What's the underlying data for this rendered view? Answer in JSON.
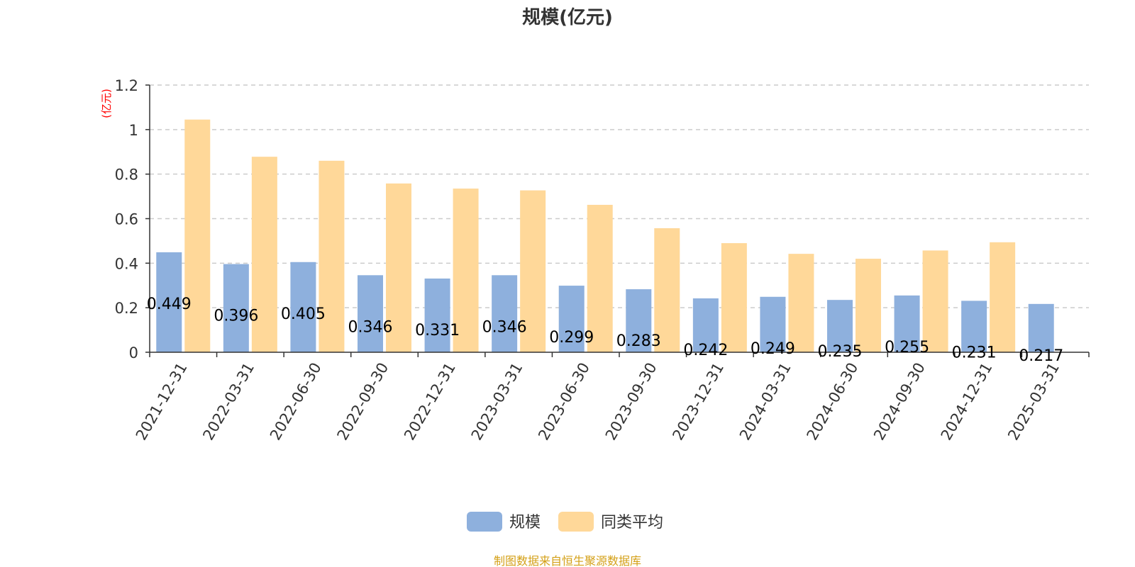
{
  "chart_data": {
    "type": "bar",
    "title": "规模(亿元)",
    "ylabel": "(亿元)",
    "ylim": [
      0,
      1.2
    ],
    "yticks": [
      "0",
      "0.2",
      "0.4",
      "0.6",
      "0.8",
      "1",
      "1.2"
    ],
    "ytick_values": [
      0,
      0.2,
      0.4,
      0.6,
      0.8,
      1,
      1.2
    ],
    "grid": true,
    "legend_position": "bottom",
    "categories": [
      "2021-12-31",
      "2022-03-31",
      "2022-06-30",
      "2022-09-30",
      "2022-12-31",
      "2023-03-31",
      "2023-06-30",
      "2023-09-30",
      "2023-12-31",
      "2024-03-31",
      "2024-06-30",
      "2024-09-30",
      "2024-12-31",
      "2025-03-31"
    ],
    "series": [
      {
        "name": "规模",
        "color": "#8eb0dd",
        "values": [
          0.449,
          0.396,
          0.405,
          0.346,
          0.331,
          0.346,
          0.299,
          0.283,
          0.242,
          0.249,
          0.235,
          0.255,
          0.231,
          0.217
        ],
        "data_labels": [
          "0.449",
          "0.396",
          "0.405",
          "0.346",
          "0.331",
          "0.346",
          "0.299",
          "0.283",
          "0.242",
          "0.249",
          "0.235",
          "0.255",
          "0.231",
          "0.217"
        ]
      },
      {
        "name": "同类平均",
        "color": "#ffd899",
        "values": [
          1.045,
          0.878,
          0.86,
          0.758,
          0.735,
          0.727,
          0.662,
          0.557,
          0.49,
          0.442,
          0.42,
          0.457,
          0.494,
          null
        ]
      }
    ],
    "source": "制图数据来自恒生聚源数据库",
    "source_color": "#d4a017"
  }
}
